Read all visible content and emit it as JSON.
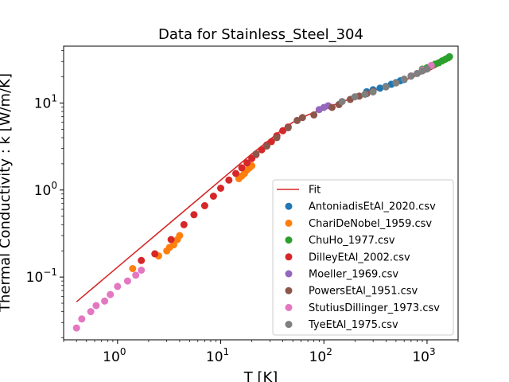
{
  "chart_data": {
    "type": "scatter",
    "title": "Data for Stainless_Steel_304",
    "xlabel": "T [K]",
    "ylabel": "Thermal Conductivity : k [W/m/K]",
    "xscale": "log",
    "yscale": "log",
    "xlim": [
      0.3,
      2000
    ],
    "ylim": [
      0.019,
      45
    ],
    "x_ticks": [
      {
        "value": 1,
        "base": "10",
        "exp": "0"
      },
      {
        "value": 10,
        "base": "10",
        "exp": "1"
      },
      {
        "value": 100,
        "base": "10",
        "exp": "2"
      },
      {
        "value": 1000,
        "base": "10",
        "exp": "3"
      }
    ],
    "y_ticks": [
      {
        "value": 0.1,
        "base": "10",
        "exp": "−1"
      },
      {
        "value": 1,
        "base": "10",
        "exp": "0"
      },
      {
        "value": 10,
        "base": "10",
        "exp": "1"
      }
    ],
    "grid": false,
    "legend_position": "lower-right",
    "fit": {
      "name": "Fit",
      "color": "#d62728",
      "points": [
        [
          0.4,
          0.052
        ],
        [
          1,
          0.13
        ],
        [
          3,
          0.39
        ],
        [
          6,
          0.78
        ],
        [
          10,
          1.3
        ],
        [
          15,
          1.95
        ],
        [
          20,
          2.6
        ],
        [
          30,
          3.8
        ],
        [
          40,
          5.0
        ],
        [
          50,
          6.0
        ],
        [
          70,
          7.3
        ],
        [
          100,
          8.6
        ],
        [
          150,
          10.3
        ],
        [
          200,
          11.8
        ],
        [
          300,
          13.8
        ],
        [
          500,
          17.0
        ],
        [
          700,
          19.5
        ],
        [
          1000,
          23.0
        ],
        [
          1300,
          27.0
        ],
        [
          1600,
          31.5
        ]
      ]
    },
    "series": [
      {
        "name": "AntoniadisEtAl_2020.csv",
        "color": "#1f77b4",
        "points": [
          [
            260,
            13.5
          ],
          [
            300,
            14.2
          ],
          [
            350,
            14.8
          ],
          [
            400,
            15.5
          ],
          [
            450,
            16.4
          ],
          [
            500,
            17.2
          ],
          [
            550,
            18.0
          ],
          [
            600,
            18.6
          ]
        ]
      },
      {
        "name": "ChariDeNobel_1959.csv",
        "color": "#ff7f0e",
        "points": [
          [
            1.4,
            0.125
          ],
          [
            2.5,
            0.175
          ],
          [
            3,
            0.2
          ],
          [
            3.2,
            0.22
          ],
          [
            3.5,
            0.235
          ],
          [
            3.8,
            0.27
          ],
          [
            4,
            0.3
          ],
          [
            15,
            1.35
          ],
          [
            16,
            1.45
          ],
          [
            17,
            1.55
          ],
          [
            18,
            1.7
          ],
          [
            19,
            1.8
          ],
          [
            20,
            1.9
          ]
        ]
      },
      {
        "name": "ChuHo_1977.csv",
        "color": "#2ca02c",
        "points": [
          [
            900,
            24.5
          ],
          [
            1000,
            25.5
          ],
          [
            1100,
            26.8
          ],
          [
            1200,
            28.0
          ],
          [
            1300,
            29.0
          ],
          [
            1400,
            30.5
          ],
          [
            1500,
            31.8
          ],
          [
            1600,
            33.0
          ],
          [
            1650,
            34.0
          ]
        ]
      },
      {
        "name": "DilleyEtAl_2002.csv",
        "color": "#d62728",
        "points": [
          [
            1.7,
            0.155
          ],
          [
            2.3,
            0.185
          ],
          [
            3.3,
            0.27
          ],
          [
            4.4,
            0.4
          ],
          [
            5.5,
            0.52
          ],
          [
            7,
            0.66
          ],
          [
            8.5,
            0.85
          ],
          [
            10,
            1.05
          ],
          [
            12,
            1.3
          ],
          [
            14,
            1.55
          ],
          [
            16,
            1.8
          ],
          [
            18,
            2.05
          ],
          [
            20,
            2.3
          ],
          [
            22,
            2.55
          ],
          [
            25,
            2.9
          ],
          [
            28,
            3.3
          ],
          [
            31,
            3.6
          ],
          [
            35,
            4.2
          ],
          [
            40,
            4.8
          ],
          [
            45,
            5.3
          ]
        ]
      },
      {
        "name": "Moeller_1969.csv",
        "color": "#9467bd",
        "points": [
          [
            90,
            8.4
          ],
          [
            100,
            8.9
          ],
          [
            110,
            9.3
          ]
        ]
      },
      {
        "name": "PowersEtAl_1951.csv",
        "color": "#8c564b",
        "points": [
          [
            22,
            2.6
          ],
          [
            28,
            3.2
          ],
          [
            35,
            4.0
          ],
          [
            45,
            5.2
          ],
          [
            55,
            6.3
          ],
          [
            62,
            6.8
          ],
          [
            80,
            7.3
          ],
          [
            120,
            8.9
          ],
          [
            140,
            9.6
          ],
          [
            180,
            11.0
          ],
          [
            220,
            12.0
          ],
          [
            260,
            12.8
          ],
          [
            300,
            13.6
          ]
        ]
      },
      {
        "name": "StutiusDillinger_1973.csv",
        "color": "#e377c2",
        "points": [
          [
            0.4,
            0.026
          ],
          [
            0.45,
            0.033
          ],
          [
            0.55,
            0.04
          ],
          [
            0.62,
            0.047
          ],
          [
            0.75,
            0.053
          ],
          [
            0.85,
            0.063
          ],
          [
            1.0,
            0.078
          ],
          [
            1.25,
            0.09
          ],
          [
            1.5,
            0.105
          ],
          [
            1.7,
            0.12
          ],
          [
            700,
            20.5
          ],
          [
            900,
            24
          ],
          [
            1100,
            27
          ]
        ]
      },
      {
        "name": "TyeEtAl_1975.csv",
        "color": "#7f7f7f",
        "points": [
          [
            150,
            10.4
          ],
          [
            200,
            11.8
          ],
          [
            250,
            12.6
          ],
          [
            300,
            13.4
          ],
          [
            400,
            15.3
          ],
          [
            500,
            17.0
          ],
          [
            600,
            18.8
          ],
          [
            700,
            20.4
          ],
          [
            800,
            21.8
          ],
          [
            900,
            23.4
          ],
          [
            1000,
            24.6
          ]
        ]
      }
    ]
  }
}
